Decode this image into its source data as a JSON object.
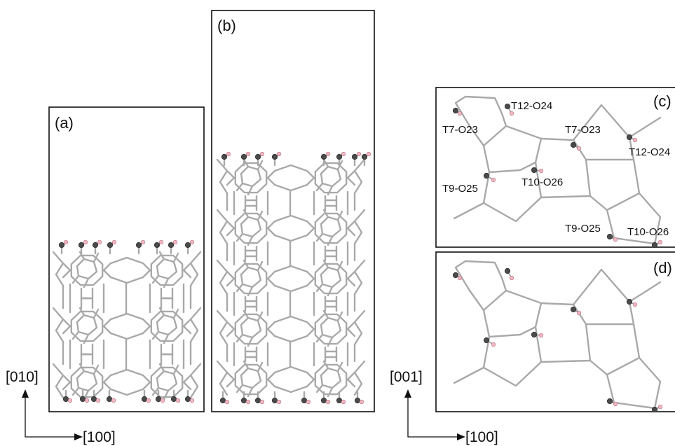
{
  "panels": {
    "a": {
      "label": "(a)"
    },
    "b": {
      "label": "(b)"
    },
    "c": {
      "label": "(c)",
      "sites": [
        "T12-O24",
        "T7-O23",
        "T7-O23",
        "T12-O24",
        "T9-O25",
        "T10-O26",
        "T9-O25",
        "T10-O26"
      ]
    },
    "d": {
      "label": "(d)"
    }
  },
  "axes": {
    "left": {
      "vertical": "[010]",
      "horizontal": "[100]"
    },
    "right": {
      "vertical": "[001]",
      "horizontal": "[100]"
    }
  },
  "colors": {
    "framework_bond": "#a9a9a9",
    "oxygen_atom": "#4a4a4a",
    "hydrogen_atom": "#f4b8c0",
    "frame": "#111111"
  },
  "icons": {
    "axis_arrow": "arrow-icon"
  }
}
